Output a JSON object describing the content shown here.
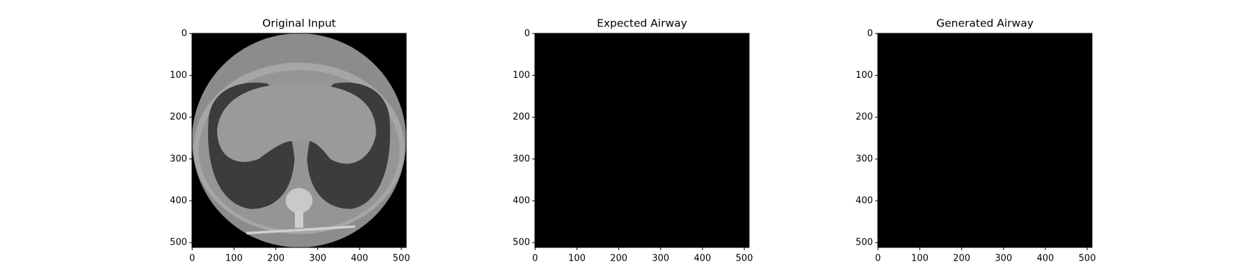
{
  "chart_data": [
    {
      "type": "image",
      "title": "Original Input",
      "xlim": [
        -0.5,
        511.5
      ],
      "ylim": [
        511.5,
        -0.5
      ],
      "xticks": [
        0,
        100,
        200,
        300,
        400,
        500
      ],
      "yticks": [
        0,
        100,
        200,
        300,
        400,
        500
      ]
    },
    {
      "type": "image",
      "title": "Expected Airway",
      "xlim": [
        -0.5,
        511.5
      ],
      "ylim": [
        511.5,
        -0.5
      ],
      "xticks": [
        0,
        100,
        200,
        300,
        400,
        500
      ],
      "yticks": [
        0,
        100,
        200,
        300,
        400,
        500
      ]
    },
    {
      "type": "image",
      "title": "Generated Airway",
      "xlim": [
        -0.5,
        511.5
      ],
      "ylim": [
        511.5,
        -0.5
      ],
      "xticks": [
        0,
        100,
        200,
        300,
        400,
        500
      ],
      "yticks": [
        0,
        100,
        200,
        300,
        400,
        500
      ]
    }
  ]
}
